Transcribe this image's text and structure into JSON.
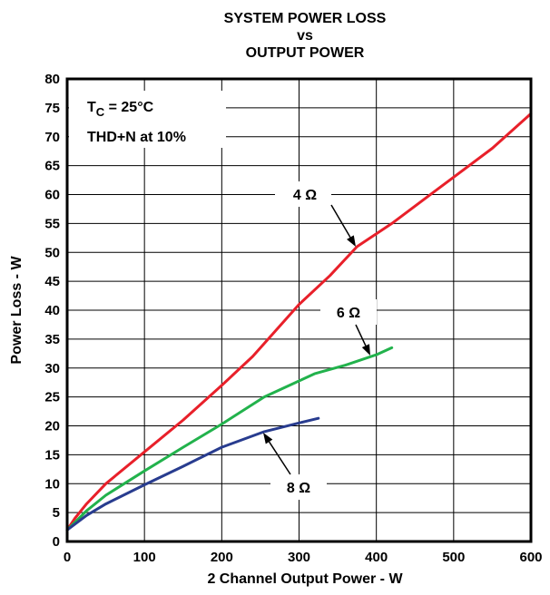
{
  "chart_data": {
    "type": "line",
    "title_lines": [
      "SYSTEM POWER LOSS",
      "vs",
      "OUTPUT POWER"
    ],
    "xlabel": "2 Channel Output Power - W",
    "ylabel": "Power Loss - W",
    "xlim": [
      0,
      600
    ],
    "ylim": [
      0,
      80
    ],
    "xticks": [
      "0",
      "100",
      "200",
      "300",
      "400",
      "500",
      "600"
    ],
    "yticks": [
      "0",
      "5",
      "10",
      "15",
      "20",
      "25",
      "30",
      "35",
      "40",
      "45",
      "50",
      "55",
      "60",
      "65",
      "70",
      "75",
      "80"
    ],
    "grid": true,
    "annotations": {
      "tc_prefix": "T",
      "tc_sub": "C",
      "tc_rest": " = 25°C",
      "thd": "THD+N at 10%"
    },
    "series": [
      {
        "name": "4 Ω",
        "color": "#e8202a",
        "x": [
          0,
          10,
          25,
          50,
          100,
          150,
          200,
          240,
          270,
          300,
          340,
          375,
          420,
          480,
          550,
          600
        ],
        "y": [
          2,
          4,
          6.5,
          10,
          15.5,
          21,
          27,
          32,
          36.5,
          41,
          46,
          51,
          55,
          61,
          68,
          74
        ]
      },
      {
        "name": "6 Ω",
        "color": "#22b24c",
        "x": [
          0,
          10,
          25,
          50,
          100,
          150,
          200,
          255,
          320,
          360,
          400,
          420
        ],
        "y": [
          2,
          3.3,
          5.3,
          8,
          12.2,
          16.3,
          20.3,
          25,
          29,
          30.5,
          32.3,
          33.5
        ]
      },
      {
        "name": "8 Ω",
        "color": "#283c8f",
        "x": [
          0,
          10,
          25,
          50,
          100,
          150,
          200,
          255,
          300,
          325
        ],
        "y": [
          2,
          3,
          4.5,
          6.5,
          9.8,
          13,
          16.3,
          19,
          20.5,
          21.3
        ]
      }
    ]
  }
}
